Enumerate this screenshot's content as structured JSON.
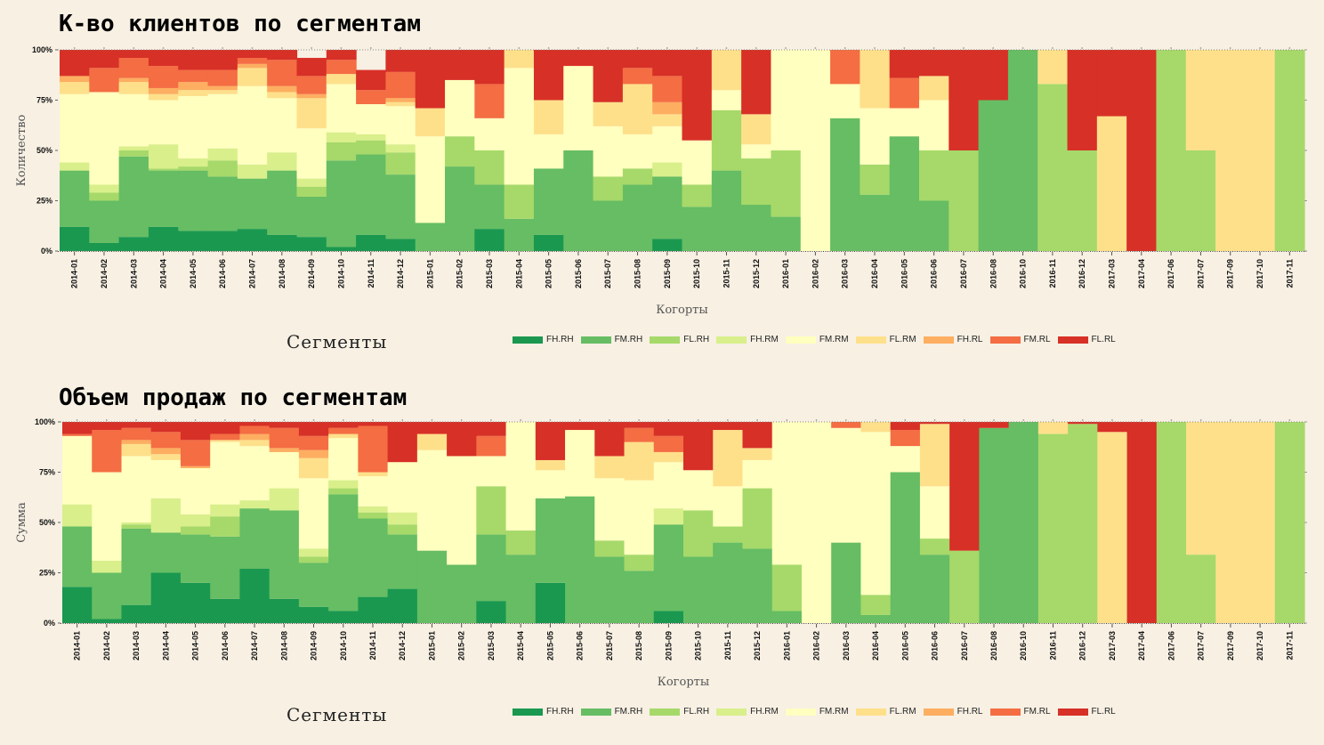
{
  "charts": [
    {
      "title": "К-во клиентов по сегментам",
      "legend_title": "Сегменты"
    },
    {
      "title": "Объем продаж по сегментам",
      "legend_title": "Сегменты"
    }
  ],
  "legend": [
    {
      "label": "FH.RH",
      "color": "#1a9850"
    },
    {
      "label": "FM.RH",
      "color": "#66bd63"
    },
    {
      "label": "FL.RH",
      "color": "#a6d96a"
    },
    {
      "label": "FH.RM",
      "color": "#d9ef8b"
    },
    {
      "label": "FM.RM",
      "color": "#ffffbf"
    },
    {
      "label": "FL.RM",
      "color": "#fee08b"
    },
    {
      "label": "FH.RL",
      "color": "#fdae61"
    },
    {
      "label": "FM.RL",
      "color": "#f46d43"
    },
    {
      "label": "FL.RL",
      "color": "#d73027"
    }
  ],
  "chart_data": [
    {
      "type": "bar",
      "stacked": true,
      "title": "К-во клиентов по сегментам",
      "xlabel": "Когорты",
      "ylabel": "Количество",
      "ylim": [
        0,
        100
      ],
      "yticks": [
        "0%",
        "25%",
        "50%",
        "75%",
        "100%"
      ],
      "legend_title": "Сегменты",
      "categories": [
        "2014-01",
        "2014-02",
        "2014-03",
        "2014-04",
        "2014-05",
        "2014-06",
        "2014-07",
        "2014-08",
        "2014-09",
        "2014-10",
        "2014-11",
        "2014-12",
        "2015-01",
        "2015-02",
        "2015-03",
        "2015-04",
        "2015-05",
        "2015-06",
        "2015-07",
        "2015-08",
        "2015-09",
        "2015-10",
        "2015-11",
        "2015-12",
        "2016-01",
        "2016-02",
        "2016-03",
        "2016-04",
        "2016-05",
        "2016-06",
        "2016-07",
        "2016-08",
        "2016-10",
        "2016-11",
        "2016-12",
        "2017-03",
        "2017-04",
        "2017-06",
        "2017-07",
        "2017-09",
        "2017-10",
        "2017-11"
      ],
      "series": [
        {
          "name": "FH.RH",
          "values": [
            12,
            4,
            7,
            12,
            10,
            10,
            11,
            8,
            7,
            2,
            8,
            6,
            0,
            0,
            11,
            0,
            8,
            0,
            0,
            0,
            6,
            0,
            0,
            0,
            0,
            0,
            0,
            0,
            0,
            0,
            0,
            0,
            0,
            0,
            0,
            0,
            0,
            0,
            0,
            0,
            0,
            0
          ]
        },
        {
          "name": "FM.RH",
          "values": [
            28,
            21,
            40,
            28,
            30,
            27,
            25,
            32,
            20,
            43,
            40,
            32,
            14,
            42,
            22,
            16,
            33,
            50,
            25,
            33,
            31,
            22,
            40,
            23,
            17,
            0,
            66,
            28,
            57,
            25,
            0,
            75,
            100,
            0,
            0,
            0,
            0,
            0,
            0,
            0,
            0,
            0
          ]
        },
        {
          "name": "FL.RH",
          "values": [
            0,
            4,
            3,
            1,
            2,
            8,
            0,
            0,
            5,
            9,
            7,
            11,
            0,
            15,
            17,
            17,
            0,
            0,
            12,
            8,
            0,
            11,
            30,
            23,
            33,
            0,
            0,
            15,
            0,
            25,
            50,
            0,
            0,
            83,
            50,
            0,
            0,
            100,
            50,
            0,
            0,
            100
          ]
        },
        {
          "name": "FH.RM",
          "values": [
            4,
            4,
            2,
            12,
            4,
            6,
            7,
            9,
            4,
            5,
            3,
            4,
            0,
            0,
            0,
            0,
            0,
            0,
            0,
            0,
            7,
            0,
            0,
            0,
            0,
            0,
            0,
            0,
            0,
            0,
            0,
            0,
            0,
            0,
            0,
            0,
            0,
            0,
            0,
            0,
            0,
            0
          ]
        },
        {
          "name": "FM.RM",
          "values": [
            34,
            46,
            26,
            22,
            31,
            27,
            39,
            27,
            25,
            24,
            15,
            19,
            43,
            28,
            16,
            58,
            17,
            42,
            25,
            17,
            18,
            22,
            10,
            7,
            50,
            100,
            17,
            28,
            14,
            25,
            0,
            0,
            0,
            0,
            0,
            0,
            0,
            0,
            0,
            0,
            0,
            0
          ]
        },
        {
          "name": "FL.RM",
          "values": [
            6,
            0,
            6,
            3,
            3,
            2,
            9,
            3,
            15,
            5,
            0,
            2,
            14,
            0,
            0,
            9,
            17,
            0,
            12,
            25,
            6,
            0,
            20,
            15,
            0,
            0,
            0,
            29,
            0,
            12,
            0,
            0,
            0,
            17,
            0,
            67,
            0,
            0,
            50,
            100,
            100,
            0
          ]
        },
        {
          "name": "FH.RL",
          "values": [
            3,
            0,
            2,
            3,
            4,
            2,
            2,
            3,
            2,
            0,
            0,
            2,
            0,
            0,
            0,
            0,
            0,
            0,
            0,
            0,
            6,
            0,
            0,
            0,
            0,
            0,
            0,
            0,
            0,
            0,
            0,
            0,
            0,
            0,
            0,
            0,
            0,
            0,
            0,
            0,
            0,
            0
          ]
        },
        {
          "name": "FM.RL",
          "values": [
            0,
            12,
            10,
            11,
            6,
            8,
            3,
            13,
            9,
            7,
            7,
            13,
            0,
            0,
            17,
            0,
            0,
            0,
            0,
            8,
            13,
            0,
            0,
            0,
            0,
            0,
            17,
            0,
            15,
            0,
            0,
            0,
            0,
            0,
            0,
            0,
            0,
            0,
            0,
            0,
            0,
            0
          ]
        },
        {
          "name": "FL.RL",
          "values": [
            13,
            9,
            4,
            8,
            10,
            10,
            4,
            5,
            9,
            5,
            10,
            11,
            29,
            15,
            17,
            0,
            25,
            8,
            26,
            9,
            13,
            45,
            0,
            32,
            0,
            0,
            0,
            0,
            14,
            13,
            50,
            25,
            0,
            0,
            50,
            33,
            100,
            0,
            0,
            0,
            0,
            0
          ]
        }
      ]
    },
    {
      "type": "bar",
      "stacked": true,
      "title": "Объем продаж по сегментам",
      "xlabel": "Когорты",
      "ylabel": "Сумма",
      "ylim": [
        0,
        100
      ],
      "yticks": [
        "0%",
        "25%",
        "50%",
        "75%",
        "100%"
      ],
      "legend_title": "Сегменты",
      "categories": [
        "2014-01",
        "2014-02",
        "2014-03",
        "2014-04",
        "2014-05",
        "2014-06",
        "2014-07",
        "2014-08",
        "2014-09",
        "2014-10",
        "2014-11",
        "2014-12",
        "2015-01",
        "2015-02",
        "2015-03",
        "2015-04",
        "2015-05",
        "2015-06",
        "2015-07",
        "2015-08",
        "2015-09",
        "2015-10",
        "2015-11",
        "2015-12",
        "2016-01",
        "2016-02",
        "2016-03",
        "2016-04",
        "2016-05",
        "2016-06",
        "2016-07",
        "2016-08",
        "2016-10",
        "2016-11",
        "2016-12",
        "2017-03",
        "2017-04",
        "2017-06",
        "2017-07",
        "2017-09",
        "2017-10",
        "2017-11"
      ],
      "series": [
        {
          "name": "FH.RH",
          "values": [
            18,
            2,
            9,
            25,
            20,
            12,
            27,
            12,
            8,
            6,
            13,
            17,
            0,
            0,
            11,
            0,
            20,
            0,
            0,
            0,
            6,
            0,
            0,
            0,
            0,
            0,
            0,
            0,
            0,
            0,
            0,
            0,
            0,
            0,
            0,
            0,
            0,
            0,
            0,
            0,
            0,
            0
          ]
        },
        {
          "name": "FM.RH",
          "values": [
            30,
            23,
            38,
            20,
            24,
            31,
            30,
            44,
            22,
            58,
            39,
            27,
            36,
            29,
            33,
            34,
            42,
            63,
            33,
            26,
            43,
            33,
            40,
            37,
            6,
            0,
            40,
            4,
            75,
            34,
            0,
            97,
            100,
            0,
            0,
            0,
            0,
            0,
            0,
            0,
            0,
            0
          ]
        },
        {
          "name": "FL.RH",
          "values": [
            0,
            0,
            2,
            0,
            4,
            10,
            0,
            0,
            3,
            3,
            3,
            5,
            0,
            0,
            24,
            12,
            0,
            0,
            8,
            8,
            0,
            23,
            8,
            30,
            23,
            0,
            0,
            10,
            0,
            8,
            36,
            0,
            0,
            94,
            99,
            0,
            0,
            100,
            34,
            0,
            0,
            100
          ]
        },
        {
          "name": "FH.RM",
          "values": [
            11,
            6,
            1,
            17,
            6,
            6,
            4,
            11,
            4,
            4,
            3,
            6,
            0,
            0,
            0,
            0,
            0,
            0,
            0,
            0,
            8,
            0,
            0,
            0,
            0,
            0,
            0,
            0,
            0,
            0,
            0,
            0,
            0,
            0,
            0,
            0,
            0,
            0,
            0,
            0,
            0,
            0
          ]
        },
        {
          "name": "FM.RM",
          "values": [
            34,
            44,
            33,
            19,
            23,
            31,
            27,
            18,
            35,
            21,
            15,
            25,
            50,
            54,
            15,
            54,
            14,
            33,
            31,
            37,
            23,
            20,
            20,
            14,
            71,
            100,
            57,
            81,
            13,
            26,
            0,
            0,
            0,
            0,
            0,
            0,
            0,
            0,
            0,
            0,
            0,
            0
          ]
        },
        {
          "name": "FL.RM",
          "values": [
            0,
            0,
            6,
            3,
            0,
            1,
            3,
            0,
            10,
            2,
            2,
            0,
            8,
            0,
            0,
            0,
            5,
            0,
            11,
            19,
            5,
            0,
            28,
            6,
            0,
            0,
            0,
            5,
            0,
            31,
            0,
            0,
            0,
            6,
            0,
            95,
            0,
            0,
            66,
            100,
            100,
            0
          ]
        },
        {
          "name": "FH.RL",
          "values": [
            0,
            0,
            2,
            3,
            1,
            0,
            3,
            2,
            4,
            0,
            0,
            0,
            0,
            0,
            0,
            0,
            0,
            0,
            0,
            0,
            0,
            0,
            0,
            0,
            0,
            0,
            0,
            0,
            0,
            0,
            0,
            0,
            0,
            0,
            0,
            0,
            0,
            0,
            0,
            0,
            0,
            0
          ]
        },
        {
          "name": "FM.RL",
          "values": [
            1,
            21,
            6,
            8,
            13,
            3,
            4,
            10,
            7,
            3,
            23,
            0,
            0,
            0,
            10,
            0,
            0,
            0,
            0,
            7,
            8,
            0,
            0,
            0,
            0,
            0,
            3,
            0,
            8,
            0,
            0,
            0,
            0,
            0,
            0,
            0,
            0,
            0,
            0,
            0,
            0,
            0
          ]
        },
        {
          "name": "FL.RL",
          "values": [
            6,
            4,
            3,
            5,
            9,
            6,
            2,
            3,
            7,
            3,
            2,
            20,
            6,
            17,
            7,
            0,
            19,
            4,
            17,
            3,
            7,
            24,
            4,
            13,
            0,
            0,
            0,
            0,
            4,
            1,
            64,
            3,
            0,
            0,
            1,
            5,
            100,
            0,
            0,
            0,
            0,
            0
          ]
        }
      ]
    }
  ]
}
